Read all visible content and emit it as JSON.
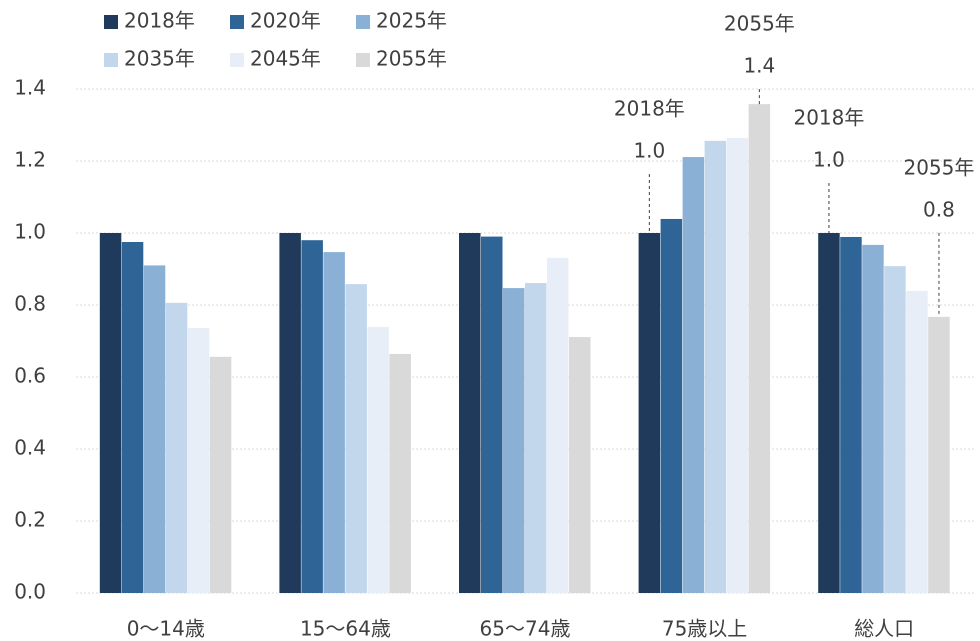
{
  "chart_data": {
    "type": "bar",
    "categories": [
      "0〜14歳",
      "15〜64歳",
      "65〜74歳",
      "75歳以上",
      "総人口"
    ],
    "series": [
      {
        "name": "2018年",
        "color": "#1f3a5a",
        "values": [
          1.0,
          1.0,
          1.0,
          1.0,
          1.0
        ]
      },
      {
        "name": "2020年",
        "color": "#2e6496",
        "values": [
          0.975,
          0.98,
          0.99,
          1.039,
          0.989
        ]
      },
      {
        "name": "2025年",
        "color": "#8bb0d6",
        "values": [
          0.91,
          0.947,
          0.847,
          1.211,
          0.967
        ]
      },
      {
        "name": "2035年",
        "color": "#c3d7ec",
        "values": [
          0.806,
          0.858,
          0.861,
          1.256,
          0.908
        ]
      },
      {
        "name": "2045年",
        "color": "#e8eef7",
        "values": [
          0.736,
          0.739,
          0.931,
          1.264,
          0.839
        ]
      },
      {
        "name": "2055年",
        "color": "#d9d9d9",
        "values": [
          0.656,
          0.664,
          0.711,
          1.358,
          0.767
        ]
      }
    ],
    "ylim": [
      0,
      1.4
    ],
    "yticks": [
      {
        "value": 0,
        "label": "0.0"
      },
      {
        "value": 0.2,
        "label": "0.2"
      },
      {
        "value": 0.4,
        "label": "0.4"
      },
      {
        "value": 0.6,
        "label": "0.6"
      },
      {
        "value": 0.8,
        "label": "0.8"
      },
      {
        "value": 1,
        "label": "1.0"
      },
      {
        "value": 1.2,
        "label": "1.2"
      },
      {
        "value": 1.4,
        "label": "1.4"
      }
    ],
    "grid": true,
    "annotations": [
      {
        "category": 3,
        "series": 0,
        "lines": [
          "2018年",
          "1.0"
        ]
      },
      {
        "category": 3,
        "series": 5,
        "lines": [
          "2055年",
          "1.4"
        ]
      },
      {
        "category": 4,
        "series": 0,
        "lines": [
          "2018年",
          "1.0"
        ]
      },
      {
        "category": 4,
        "series": 5,
        "lines": [
          "2055年",
          "0.8"
        ]
      }
    ]
  }
}
